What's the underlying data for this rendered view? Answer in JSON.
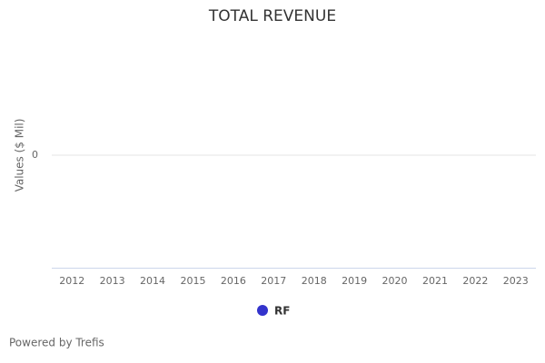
{
  "chart_data": {
    "type": "line",
    "title": "TOTAL REVENUE",
    "y_label": "Values ($ Mil)",
    "categories": [
      "2012",
      "2013",
      "2014",
      "2015",
      "2016",
      "2017",
      "2018",
      "2019",
      "2020",
      "2021",
      "2022",
      "2023"
    ],
    "series": [
      {
        "name": "RF",
        "color": "#3333cc",
        "values": [
          null,
          null,
          null,
          null,
          null,
          null,
          null,
          null,
          null,
          null,
          null,
          null
        ]
      }
    ],
    "ylim": [
      -1,
      1
    ],
    "yticks": [
      0
    ],
    "grid": true,
    "legend": "bottom",
    "credits": "Powered by Trefis"
  }
}
